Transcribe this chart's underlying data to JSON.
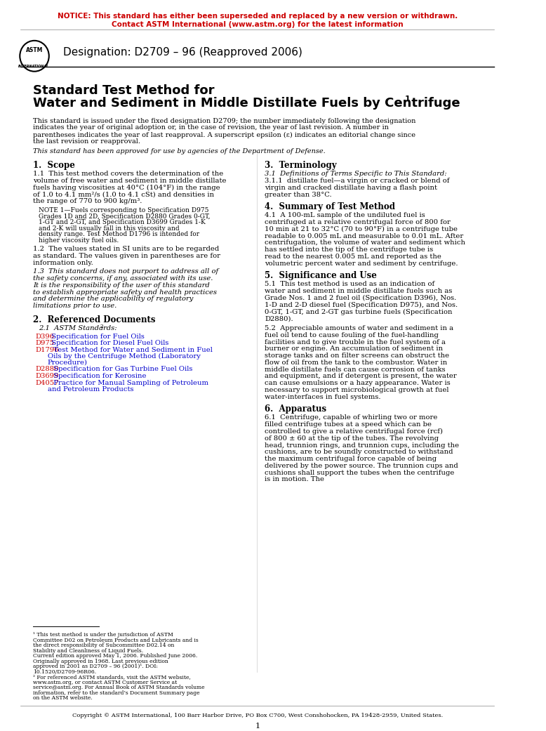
{
  "notice_line1": "NOTICE: This standard has either been superseded and replaced by a new version or withdrawn.",
  "notice_line2": "Contact ASTM International (www.astm.org) for the latest information",
  "notice_color": "#CC0000",
  "designation": "Designation: D2709 – 96 (Reapproved 2006)",
  "title_line1": "Standard Test Method for",
  "title_line2": "Water and Sediment in Middle Distillate Fuels by Centrifuge",
  "title_superscript": "1",
  "preamble": "This standard is issued under the fixed designation D2709; the number immediately following the designation indicates the year of original adoption or, in the case of revision, the year of last revision. A number in parentheses indicates the year of last reapproval. A superscript epsilon (ε) indicates an editorial change since the last revision or reapproval.",
  "dod_approval": "This standard has been approved for use by agencies of the Department of Defense.",
  "section1_head": "1.  Scope",
  "s1p1": "1.1  This test method covers the determination of the volume of free water and sediment in middle distillate fuels having viscosities at 40°C (104°F) in the range of 1.0 to 4.1 mm²/s (1.0 to 4.1 cSt) and densities in the range of 770 to 900 kg/m³.",
  "s1note": "NOTE 1—Fuels corresponding to Specification D975 Grades 1D and 2D, Specification D2880 Grades 0-GT, 1-GT and 2-GT, and Specification D3699 Grades 1-K and 2-K will usually fall in this viscosity and density range. Test Method D1796 is intended for higher viscosity fuel oils.",
  "s1p2": "1.2  The values stated in SI units are to be regarded as standard. The values given in parentheses are for information only.",
  "s1p3": "1.3  This standard does not purport to address all of the safety concerns, if any, associated with its use. It is the responsibility of the user of this standard to establish appropriate safety and health practices and determine the applicability of regulatory limitations prior to use.",
  "section2_head": "2.  Referenced Documents",
  "s2p1": "2.1  ASTM Standards:",
  "s2_footnote": "2",
  "s2refs": [
    {
      "code": "D396",
      "desc": "  Specification for Fuel Oils"
    },
    {
      "code": "D975",
      "desc": "  Specification for Diesel Fuel Oils"
    },
    {
      "code": "D1796",
      "desc": "  Test Method for Water and Sediment in Fuel Oils by the Centrifuge Method (Laboratory Procedure)"
    },
    {
      "code": "D2880",
      "desc": "  Specification for Gas Turbine Fuel Oils"
    },
    {
      "code": "D3699",
      "desc": "  Specification for Kerosine"
    },
    {
      "code": "D4057",
      "desc": "  Practice for Manual Sampling of Petroleum and Petroleum Products"
    }
  ],
  "section3_head": "3.  Terminology",
  "s3p1_italic": "3.1  Definitions of Terms Specific to This Standard:",
  "s3p1_1": "3.1.1  distillate fuel—a virgin or cracked or blend of virgin and cracked distillate having a flash point greater than 38°C.",
  "section4_head": "4.  Summary of Test Method",
  "s4p1": "4.1  A 100-mL sample of the undiluted fuel is centrifuged at a relative centrifugal force of 800 for 10 min at 21 to 32°C (70 to 90°F) in a centrifuge tube readable to 0.005 mL and measurable to 0.01 mL. After centrifugation, the volume of water and sediment which has settled into the tip of the centrifuge tube is read to the nearest 0.005 mL and reported as the volumetric percent water and sediment by centrifuge.",
  "section5_head": "5.  Significance and Use",
  "s5p1": "5.1  This test method is used as an indication of water and sediment in middle distillate fuels such as Grade Nos. 1 and 2 fuel oil (Specification D396), Nos. 1-D and 2-D diesel fuel (Specification D975), and Nos. 0-GT, 1-GT, and 2-GT gas turbine fuels (Specification D2880).",
  "s5p2": "5.2  Appreciable amounts of water and sediment in a fuel oil tend to cause fouling of the fuel-handling facilities and to give trouble in the fuel system of a burner or engine. An accumulation of sediment in storage tanks and on filter screens can obstruct the flow of oil from the tank to the combustor. Water in middle distillate fuels can cause corrosion of tanks and equipment, and if detergent is present, the water can cause emulsions or a hazy appearance. Water is necessary to support microbiological growth at fuel water-interfaces in fuel systems.",
  "section6_head": "6.  Apparatus",
  "s6p1": "6.1  Centrifuge, capable of whirling two or more filled centrifuge tubes at a speed which can be controlled to give a relative centrifugal force (rcf) of 800 ± 60 at the tip of the tubes. The revolving head, trunnion rings, and trunnion cups, including the cushions, are to be soundly constructed to withstand the maximum centrifugal force capable of being delivered by the power source. The trunnion cups and cushions shall support the tubes when the centrifuge is in motion. The",
  "footnote1": "¹ This test method is under the jurisdiction of ASTM Committee D02 on Petroleum Products and Lubricants and is the direct responsibility of Subcommittee D02.14 on Stability and Cleanliness of Liquid Fuels.",
  "footnote1b": "Current edition approved May 1, 2006. Published June 2006. Originally approved in 1968. Last previous edition approved in 2001 as D2709 – 96 (2001)¹. DOI: 10.1520/D2709-96R06.",
  "footnote2": "² For referenced ASTM standards, visit the ASTM website, www.astm.org, or contact ASTM Customer Service at service@astm.org. For Annual Book of ASTM Standards volume information, refer to the standard’s Document Summary page on the ASTM website.",
  "copyright": "Copyright © ASTM International, 100 Barr Harbor Drive, PO Box C700, West Conshohocken, PA 19428-2959, United States.",
  "page_number": "1",
  "link_color": "#0000CC",
  "red_color": "#CC0000",
  "bg_color": "#FFFFFF",
  "text_color": "#000000"
}
